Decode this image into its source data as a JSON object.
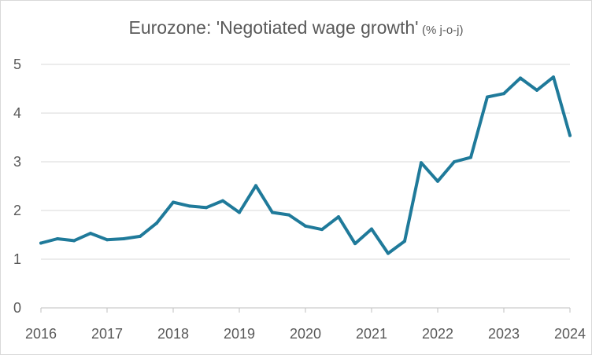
{
  "chart_data": {
    "type": "line",
    "title": "Eurozone: 'Negotiated wage growth'",
    "title_unit": "(% j-o-j)",
    "xlabel": "",
    "ylabel": "",
    "x_ticks": [
      "2016",
      "2017",
      "2018",
      "2019",
      "2020",
      "2021",
      "2022",
      "2023",
      "2024"
    ],
    "y_ticks": [
      "0",
      "1",
      "2",
      "3",
      "4",
      "5"
    ],
    "xlim": [
      2016,
      2024
    ],
    "ylim": [
      0,
      5
    ],
    "grid": "horizontal",
    "legend": "none",
    "color": "#1f7a9a",
    "series": [
      {
        "x": [
          2016.0,
          2016.25,
          2016.5,
          2016.75,
          2017.0,
          2017.25,
          2017.5,
          2017.75,
          2018.0,
          2018.25,
          2018.5,
          2018.75,
          2019.0,
          2019.25,
          2019.5,
          2019.75,
          2020.0,
          2020.25,
          2020.5,
          2020.75,
          2021.0,
          2021.25,
          2021.5,
          2021.75,
          2022.0,
          2022.25,
          2022.5,
          2022.75,
          2023.0,
          2023.25,
          2023.5,
          2023.75,
          2024.0
        ],
        "values": [
          1.33,
          1.42,
          1.38,
          1.53,
          1.4,
          1.42,
          1.47,
          1.74,
          2.17,
          2.09,
          2.06,
          2.2,
          1.96,
          2.51,
          1.96,
          1.91,
          1.68,
          1.61,
          1.87,
          1.32,
          1.62,
          1.12,
          1.37,
          2.98,
          2.6,
          3.0,
          3.09,
          4.33,
          4.4,
          4.72,
          4.47,
          4.74,
          3.54
        ]
      }
    ]
  }
}
